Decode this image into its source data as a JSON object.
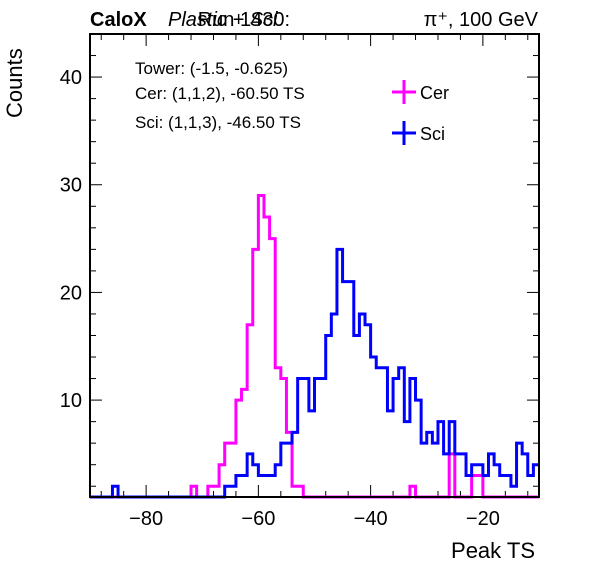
{
  "chart_data": {
    "type": "histogram-step",
    "header": {
      "brand": "CaloX",
      "material": "Plastic + Sci",
      "run": "Run 1430:",
      "beam": "π⁺, 100 GeV"
    },
    "xlabel": "Peak TS",
    "ylabel": "Counts",
    "xlim": [
      -90,
      -10
    ],
    "ylim": [
      1,
      44
    ],
    "xticks": [
      -80,
      -60,
      -40,
      -20
    ],
    "yticks": [
      10,
      20,
      30,
      40
    ],
    "xtick_labels": [
      "−80",
      "−60",
      "−40",
      "−20"
    ],
    "ytick_labels": [
      "10",
      "20",
      "30",
      "40"
    ],
    "bin_width": 1,
    "legend_placement": "top-right",
    "info_lines": [
      "Tower: (-1.5, -0.625)",
      "Cer: (1,1,2), -60.50 TS",
      "Sci: (1,1,3), -46.50 TS"
    ],
    "series": [
      {
        "name": "Cer",
        "color": "#ff00ff",
        "bins": [
          [
            -72,
            2
          ],
          [
            -69,
            2
          ],
          [
            -68,
            2
          ],
          [
            -67,
            4
          ],
          [
            -66,
            6
          ],
          [
            -65,
            6
          ],
          [
            -64,
            10
          ],
          [
            -63,
            11
          ],
          [
            -62,
            17
          ],
          [
            -61,
            24
          ],
          [
            -60,
            29
          ],
          [
            -59,
            27
          ],
          [
            -58,
            25
          ],
          [
            -57,
            13
          ],
          [
            -56,
            12
          ],
          [
            -55,
            7
          ],
          [
            -54,
            2
          ],
          [
            -53,
            2
          ],
          [
            -33,
            2
          ],
          [
            -26,
            5
          ],
          [
            -22,
            3
          ],
          [
            -21,
            3
          ]
        ]
      },
      {
        "name": "Sci",
        "color": "#0000ff",
        "bins": [
          [
            -86,
            2
          ],
          [
            -66,
            2
          ],
          [
            -65,
            2
          ],
          [
            -64,
            3
          ],
          [
            -63,
            3
          ],
          [
            -62,
            5
          ],
          [
            -61,
            4
          ],
          [
            -60,
            3
          ],
          [
            -59,
            3
          ],
          [
            -58,
            3
          ],
          [
            -57,
            4
          ],
          [
            -56,
            6
          ],
          [
            -55,
            6
          ],
          [
            -54,
            7
          ],
          [
            -53,
            12
          ],
          [
            -52,
            12
          ],
          [
            -51,
            9
          ],
          [
            -50,
            12
          ],
          [
            -49,
            12
          ],
          [
            -48,
            16
          ],
          [
            -47,
            18
          ],
          [
            -46,
            24
          ],
          [
            -45,
            21
          ],
          [
            -44,
            21
          ],
          [
            -43,
            16
          ],
          [
            -42,
            18
          ],
          [
            -41,
            17
          ],
          [
            -40,
            14
          ],
          [
            -39,
            13
          ],
          [
            -38,
            13
          ],
          [
            -37,
            9
          ],
          [
            -36,
            12
          ],
          [
            -35,
            13
          ],
          [
            -34,
            8
          ],
          [
            -33,
            12
          ],
          [
            -32,
            10
          ],
          [
            -31,
            6
          ],
          [
            -30,
            7
          ],
          [
            -29,
            6
          ],
          [
            -28,
            8
          ],
          [
            -27,
            5
          ],
          [
            -26,
            8
          ],
          [
            -25,
            5
          ],
          [
            -24,
            5
          ],
          [
            -23,
            3
          ],
          [
            -22,
            4
          ],
          [
            -21,
            4
          ],
          [
            -20,
            3
          ],
          [
            -19,
            5
          ],
          [
            -18,
            4
          ],
          [
            -17,
            3
          ],
          [
            -16,
            3
          ],
          [
            -15,
            2
          ],
          [
            -14,
            6
          ],
          [
            -13,
            5
          ],
          [
            -12,
            3
          ],
          [
            -11,
            4
          ]
        ]
      }
    ]
  }
}
